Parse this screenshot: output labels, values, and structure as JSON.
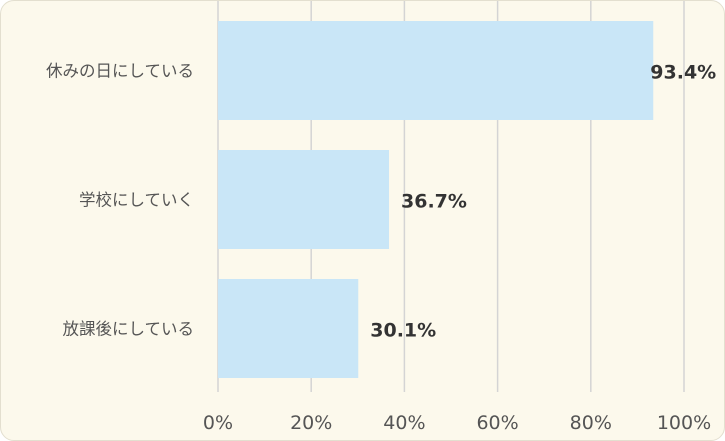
{
  "chart_data": {
    "type": "bar",
    "orientation": "horizontal",
    "categories": [
      "休みの日にしている",
      "学校にしていく",
      "放課後にしている"
    ],
    "values": [
      93.4,
      36.7,
      30.1
    ],
    "data_labels": [
      "93.4%",
      "36.7%",
      "30.1%"
    ],
    "xlim": [
      0,
      100
    ],
    "xticks": [
      "0%",
      "20%",
      "40%",
      "60%",
      "80%",
      "100%"
    ],
    "grid": true,
    "title": "",
    "xlabel": "",
    "ylabel": "",
    "colors": {
      "bar": "#c9e6f7",
      "grid": "#d4d4d4",
      "background": "#fcf9ec",
      "text": "#555555",
      "label": "#333333"
    }
  }
}
